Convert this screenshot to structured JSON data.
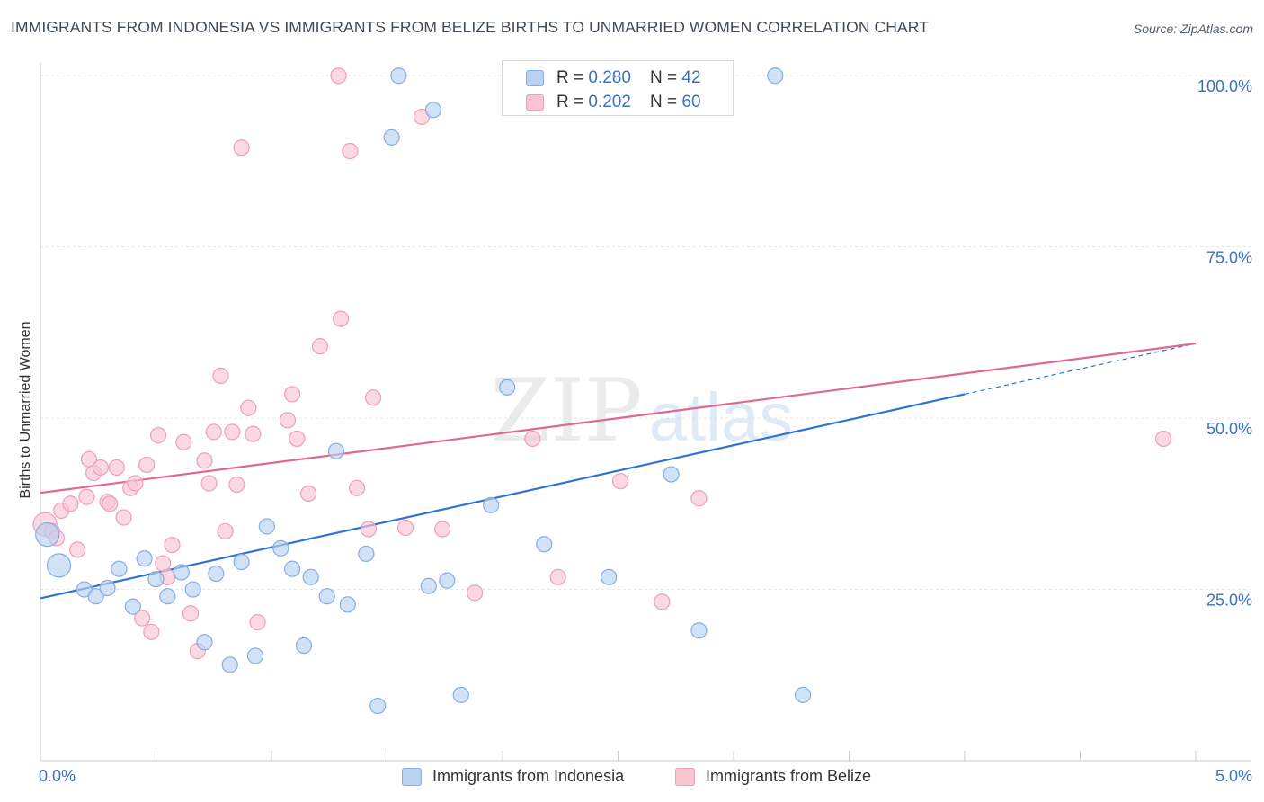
{
  "title": "IMMIGRANTS FROM INDONESIA VS IMMIGRANTS FROM BELIZE BIRTHS TO UNMARRIED WOMEN CORRELATION CHART",
  "source": "Source: ZipAtlas.com",
  "watermark": {
    "zip": "ZIP",
    "atlas": "atlas"
  },
  "legend": {
    "rows": [
      {
        "r_label": "R = ",
        "r_value": "0.280",
        "n_label": "N = ",
        "n_value": "42"
      },
      {
        "r_label": "R = ",
        "r_value": "0.202",
        "n_label": "N = ",
        "n_value": "60"
      }
    ]
  },
  "bottom_legend": {
    "indonesia": "Immigrants from Indonesia",
    "belize": "Immigrants from Belize"
  },
  "colors": {
    "indonesia_fill": "#b9d2f1",
    "indonesia_stroke": "#87ade6",
    "indonesia_line": "#2e74d0",
    "belize_fill": "#f8c5d3",
    "belize_stroke": "#ef9fb6",
    "belize_line": "#e06890",
    "tick_label": "#3a72c4"
  },
  "chart_data": {
    "type": "scatter",
    "title": "IMMIGRANTS FROM INDONESIA VS IMMIGRANTS FROM BELIZE BIRTHS TO UNMARRIED WOMEN CORRELATION CHART",
    "xlabel": "",
    "ylabel": "Births to Unmarried Women",
    "xlim": [
      0,
      5
    ],
    "ylim": [
      0,
      102
    ],
    "x_tick_labels": [
      "0.0%",
      "5.0%"
    ],
    "y_ticks": [
      25,
      50,
      75,
      100
    ],
    "y_tick_labels": [
      "25.0%",
      "50.0%",
      "75.0%",
      "100.0%"
    ],
    "grid": true,
    "legend_position": "top-center",
    "series": [
      {
        "name": "Immigrants from Indonesia",
        "r": 0.28,
        "n": 42,
        "trend": {
          "x": [
            0,
            4.0
          ],
          "y": [
            23.7,
            53.5
          ],
          "dashed_to": [
            5.0,
            60.9
          ]
        },
        "points": [
          {
            "x": 0.03,
            "y": 33.0,
            "s": "l"
          },
          {
            "x": 0.08,
            "y": 28.5,
            "s": "l"
          },
          {
            "x": 0.19,
            "y": 25.0
          },
          {
            "x": 0.24,
            "y": 24.0
          },
          {
            "x": 0.29,
            "y": 25.2
          },
          {
            "x": 0.34,
            "y": 28.0
          },
          {
            "x": 0.4,
            "y": 22.5
          },
          {
            "x": 0.45,
            "y": 29.5
          },
          {
            "x": 0.5,
            "y": 26.5
          },
          {
            "x": 0.55,
            "y": 24.0
          },
          {
            "x": 0.61,
            "y": 27.5
          },
          {
            "x": 0.66,
            "y": 25.0
          },
          {
            "x": 0.71,
            "y": 17.3
          },
          {
            "x": 0.76,
            "y": 27.3
          },
          {
            "x": 0.82,
            "y": 14.0
          },
          {
            "x": 0.87,
            "y": 29.0
          },
          {
            "x": 0.93,
            "y": 15.3
          },
          {
            "x": 0.98,
            "y": 34.2
          },
          {
            "x": 1.04,
            "y": 31.0
          },
          {
            "x": 1.09,
            "y": 28.0
          },
          {
            "x": 1.14,
            "y": 16.8
          },
          {
            "x": 1.17,
            "y": 26.8
          },
          {
            "x": 1.24,
            "y": 24.0
          },
          {
            "x": 1.28,
            "y": 45.2
          },
          {
            "x": 1.33,
            "y": 22.8
          },
          {
            "x": 1.41,
            "y": 30.2
          },
          {
            "x": 1.46,
            "y": 8.0
          },
          {
            "x": 1.52,
            "y": 91.0
          },
          {
            "x": 1.55,
            "y": 100.0
          },
          {
            "x": 1.68,
            "y": 25.5
          },
          {
            "x": 1.7,
            "y": 95.0
          },
          {
            "x": 1.76,
            "y": 26.3
          },
          {
            "x": 1.82,
            "y": 9.6
          },
          {
            "x": 1.95,
            "y": 37.3
          },
          {
            "x": 2.02,
            "y": 54.5
          },
          {
            "x": 2.18,
            "y": 31.6
          },
          {
            "x": 2.46,
            "y": 26.8
          },
          {
            "x": 2.73,
            "y": 41.8
          },
          {
            "x": 2.85,
            "y": 19.0
          },
          {
            "x": 3.18,
            "y": 100.0
          },
          {
            "x": 3.3,
            "y": 9.6
          }
        ]
      },
      {
        "name": "Immigrants from Belize",
        "r": 0.202,
        "n": 60,
        "trend": {
          "x": [
            0,
            5.0
          ],
          "y": [
            39.1,
            60.9
          ]
        },
        "points": [
          {
            "x": 0.02,
            "y": 34.5,
            "s": "l"
          },
          {
            "x": 0.05,
            "y": 33.5
          },
          {
            "x": 0.07,
            "y": 32.5
          },
          {
            "x": 0.09,
            "y": 36.5
          },
          {
            "x": 0.13,
            "y": 37.5
          },
          {
            "x": 0.16,
            "y": 30.8
          },
          {
            "x": 0.2,
            "y": 38.5
          },
          {
            "x": 0.21,
            "y": 44.0
          },
          {
            "x": 0.23,
            "y": 42.0
          },
          {
            "x": 0.26,
            "y": 42.8
          },
          {
            "x": 0.29,
            "y": 37.8
          },
          {
            "x": 0.3,
            "y": 37.5
          },
          {
            "x": 0.33,
            "y": 42.8
          },
          {
            "x": 0.36,
            "y": 35.5
          },
          {
            "x": 0.39,
            "y": 39.8
          },
          {
            "x": 0.41,
            "y": 40.5
          },
          {
            "x": 0.44,
            "y": 20.8
          },
          {
            "x": 0.46,
            "y": 43.2
          },
          {
            "x": 0.48,
            "y": 18.8
          },
          {
            "x": 0.51,
            "y": 47.5
          },
          {
            "x": 0.53,
            "y": 28.8
          },
          {
            "x": 0.55,
            "y": 26.8
          },
          {
            "x": 0.57,
            "y": 31.5
          },
          {
            "x": 0.62,
            "y": 46.5
          },
          {
            "x": 0.65,
            "y": 21.5
          },
          {
            "x": 0.68,
            "y": 16.0
          },
          {
            "x": 0.71,
            "y": 43.8
          },
          {
            "x": 0.73,
            "y": 40.5
          },
          {
            "x": 0.75,
            "y": 48.0
          },
          {
            "x": 0.78,
            "y": 56.2
          },
          {
            "x": 0.8,
            "y": 33.5
          },
          {
            "x": 0.83,
            "y": 48.0
          },
          {
            "x": 0.85,
            "y": 40.3
          },
          {
            "x": 0.87,
            "y": 89.5
          },
          {
            "x": 0.9,
            "y": 51.5
          },
          {
            "x": 0.92,
            "y": 47.7
          },
          {
            "x": 0.94,
            "y": 20.2
          },
          {
            "x": 1.07,
            "y": 49.7
          },
          {
            "x": 1.09,
            "y": 53.5
          },
          {
            "x": 1.11,
            "y": 47.0
          },
          {
            "x": 1.16,
            "y": 39.0
          },
          {
            "x": 1.21,
            "y": 60.5
          },
          {
            "x": 1.29,
            "y": 100.0
          },
          {
            "x": 1.3,
            "y": 64.5
          },
          {
            "x": 1.34,
            "y": 89.0
          },
          {
            "x": 1.37,
            "y": 39.8
          },
          {
            "x": 1.42,
            "y": 33.8
          },
          {
            "x": 1.44,
            "y": 53.0
          },
          {
            "x": 1.58,
            "y": 34.0
          },
          {
            "x": 1.65,
            "y": 94.0
          },
          {
            "x": 1.74,
            "y": 33.8
          },
          {
            "x": 1.88,
            "y": 24.5
          },
          {
            "x": 2.13,
            "y": 47.0
          },
          {
            "x": 2.24,
            "y": 26.8
          },
          {
            "x": 2.51,
            "y": 40.8
          },
          {
            "x": 2.69,
            "y": 23.2
          },
          {
            "x": 2.85,
            "y": 38.3
          },
          {
            "x": 4.86,
            "y": 47.0
          }
        ]
      }
    ]
  }
}
